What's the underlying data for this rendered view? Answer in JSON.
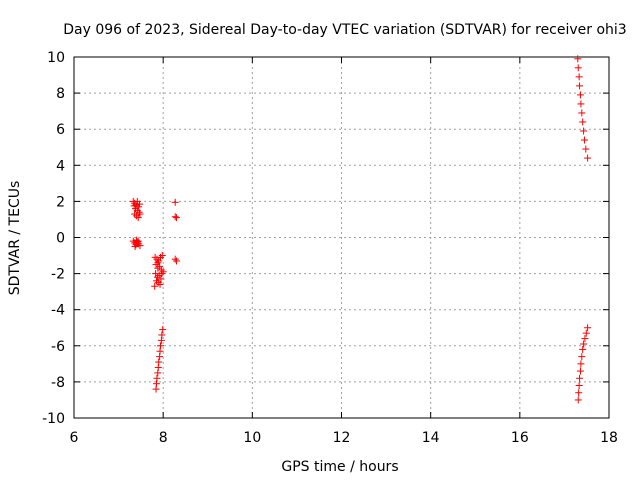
{
  "chart_data": {
    "type": "scatter",
    "title": "Day 096 of 2023, Sidereal Day-to-day VTEC variation (SDTVAR) for receiver ohi3",
    "xlabel": "GPS time / hours",
    "ylabel": "SDTVAR / TECUs",
    "xlim": [
      6,
      18
    ],
    "ylim": [
      -10,
      10
    ],
    "xticks": [
      6,
      8,
      10,
      12,
      14,
      16,
      18
    ],
    "yticks": [
      -10,
      -8,
      -6,
      -4,
      -2,
      0,
      2,
      4,
      6,
      8,
      10
    ],
    "xtick_labels": [
      "6",
      "8",
      "10",
      "12",
      "14",
      "16",
      "18"
    ],
    "ytick_labels": [
      "-10",
      "-8",
      "-6",
      "-4",
      "-2",
      "0",
      "2",
      "4",
      "6",
      "8",
      "10"
    ],
    "grid": true,
    "legend": "none",
    "marker": "plus",
    "color": "#ff0000",
    "points": [
      [
        7.33,
        2.0
      ],
      [
        7.36,
        1.9
      ],
      [
        7.39,
        1.8
      ],
      [
        7.42,
        2.0
      ],
      [
        7.45,
        1.7
      ],
      [
        7.38,
        1.6
      ],
      [
        7.42,
        1.5
      ],
      [
        7.46,
        1.4
      ],
      [
        7.36,
        1.3
      ],
      [
        7.4,
        1.2
      ],
      [
        7.44,
        1.1
      ],
      [
        7.48,
        1.3
      ],
      [
        7.35,
        1.75
      ],
      [
        7.47,
        1.85
      ],
      [
        7.33,
        -0.2
      ],
      [
        7.36,
        -0.3
      ],
      [
        7.39,
        -0.4
      ],
      [
        7.42,
        -0.25
      ],
      [
        7.45,
        -0.35
      ],
      [
        7.48,
        -0.45
      ],
      [
        7.4,
        -0.15
      ],
      [
        7.37,
        -0.5
      ],
      [
        7.44,
        -0.2
      ],
      [
        7.82,
        -1.1
      ],
      [
        7.86,
        -1.2
      ],
      [
        7.9,
        -1.3
      ],
      [
        7.94,
        -1.1
      ],
      [
        7.98,
        -1.0
      ],
      [
        7.84,
        -1.5
      ],
      [
        7.88,
        -1.7
      ],
      [
        7.92,
        -1.6
      ],
      [
        7.96,
        -1.8
      ],
      [
        8.0,
        -1.9
      ],
      [
        7.83,
        -2.0
      ],
      [
        7.87,
        -2.2
      ],
      [
        7.91,
        -2.1
      ],
      [
        7.95,
        -2.3
      ],
      [
        7.85,
        -2.4
      ],
      [
        7.89,
        -2.5
      ],
      [
        7.93,
        -2.6
      ],
      [
        7.81,
        -2.7
      ],
      [
        7.97,
        -2.0
      ],
      [
        7.88,
        -1.4
      ],
      [
        8.27,
        1.95
      ],
      [
        8.27,
        1.15
      ],
      [
        8.3,
        1.1
      ],
      [
        8.27,
        -1.2
      ],
      [
        8.3,
        -1.3
      ],
      [
        7.99,
        -5.1
      ],
      [
        7.97,
        -5.4
      ],
      [
        7.96,
        -5.7
      ],
      [
        7.94,
        -6.0
      ],
      [
        7.93,
        -6.3
      ],
      [
        7.92,
        -6.6
      ],
      [
        7.9,
        -6.9
      ],
      [
        7.89,
        -7.2
      ],
      [
        7.88,
        -7.5
      ],
      [
        7.86,
        -7.8
      ],
      [
        7.85,
        -8.1
      ],
      [
        7.84,
        -8.4
      ],
      [
        17.3,
        9.9
      ],
      [
        17.31,
        9.4
      ],
      [
        17.33,
        8.9
      ],
      [
        17.34,
        8.4
      ],
      [
        17.36,
        7.9
      ],
      [
        17.37,
        7.4
      ],
      [
        17.39,
        6.9
      ],
      [
        17.41,
        6.4
      ],
      [
        17.43,
        5.9
      ],
      [
        17.45,
        5.4
      ],
      [
        17.48,
        4.9
      ],
      [
        17.52,
        4.4
      ],
      [
        17.52,
        -5.0
      ],
      [
        17.49,
        -5.3
      ],
      [
        17.46,
        -5.6
      ],
      [
        17.43,
        -5.9
      ],
      [
        17.41,
        -6.2
      ],
      [
        17.39,
        -6.6
      ],
      [
        17.37,
        -7.0
      ],
      [
        17.36,
        -7.4
      ],
      [
        17.34,
        -7.8
      ],
      [
        17.33,
        -8.2
      ],
      [
        17.32,
        -8.6
      ],
      [
        17.31,
        -9.0
      ]
    ]
  }
}
